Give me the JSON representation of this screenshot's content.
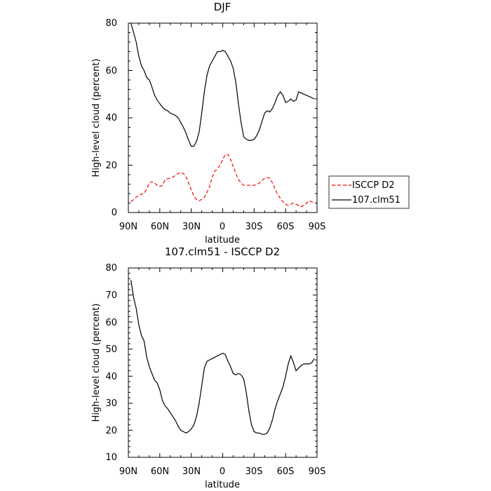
{
  "chart_data": [
    {
      "type": "line",
      "title": "DJF",
      "xlabel": "latitude",
      "ylabel": "High-level cloud (percent)",
      "xlim": [
        90,
        -90
      ],
      "ylim": [
        0,
        80
      ],
      "x_ticks": [
        90,
        60,
        30,
        0,
        -30,
        -60,
        -90
      ],
      "x_tick_labels": [
        "90N",
        "60N",
        "30N",
        "0",
        "30S",
        "60S",
        "90S"
      ],
      "y_ticks": [
        0,
        20,
        40,
        60,
        80
      ],
      "y_tick_labels": [
        "0",
        "20",
        "40",
        "60",
        "80"
      ],
      "legend_position": "right",
      "series": [
        {
          "name": "ISCCP D2",
          "color": "#ff0000",
          "style": "dashed",
          "x": [
            87.5,
            85,
            82.5,
            80,
            77.5,
            75,
            72.5,
            70,
            67.5,
            65,
            62.5,
            60,
            57.5,
            55,
            52.5,
            50,
            47.5,
            45,
            42.5,
            40,
            37.5,
            35,
            32.5,
            30,
            27.5,
            25,
            22.5,
            20,
            17.5,
            15,
            12.5,
            10,
            7.5,
            5,
            2.5,
            0,
            -2.5,
            -5,
            -7.5,
            -10,
            -12.5,
            -15,
            -17.5,
            -20,
            -22.5,
            -25,
            -27.5,
            -30,
            -32.5,
            -35,
            -37.5,
            -40,
            -42.5,
            -45,
            -47.5,
            -50,
            -52.5,
            -55,
            -57.5,
            -60,
            -62.5,
            -65,
            -67.5,
            -70,
            -72.5,
            -75,
            -77.5,
            -80,
            -82.5,
            -85,
            -87.5
          ],
          "y": [
            4.6,
            5.5,
            6.5,
            7.2,
            7.8,
            8.0,
            10.0,
            12.5,
            13.0,
            12.5,
            11.5,
            11.0,
            11.5,
            13.8,
            14.3,
            14.5,
            15.0,
            15.8,
            16.5,
            16.9,
            16.5,
            15.0,
            12.5,
            9.5,
            7.0,
            5.5,
            5.0,
            5.5,
            6.5,
            8.5,
            11.0,
            15.0,
            17.5,
            18.5,
            20.0,
            22.5,
            24.5,
            24.5,
            22.5,
            19.5,
            16.5,
            14.0,
            12.5,
            11.5,
            11.5,
            11.5,
            11.5,
            11.5,
            11.8,
            12.5,
            13.5,
            14.5,
            14.8,
            14.5,
            12.5,
            10.0,
            7.5,
            6.0,
            4.5,
            3.5,
            3.0,
            3.5,
            4.0,
            3.5,
            3.0,
            2.5,
            3.0,
            4.0,
            5.0,
            4.5,
            4.0
          ]
        },
        {
          "name": "107.clm51",
          "color": "#000000",
          "style": "solid",
          "x": [
            87.5,
            85,
            82.5,
            80,
            77.5,
            75,
            72.5,
            70,
            67.5,
            65,
            62.5,
            60,
            57.5,
            55,
            52.5,
            50,
            47.5,
            45,
            42.5,
            40,
            37.5,
            35,
            32.5,
            30,
            27.5,
            25,
            22.5,
            20,
            17.5,
            15,
            12.5,
            10,
            7.5,
            5,
            2.5,
            0,
            -2.5,
            -5,
            -7.5,
            -10,
            -12.5,
            -15,
            -17.5,
            -20,
            -22.5,
            -25,
            -27.5,
            -30,
            -32.5,
            -35,
            -37.5,
            -40,
            -42.5,
            -45,
            -47.5,
            -50,
            -52.5,
            -55,
            -57.5,
            -60,
            -62.5,
            -65,
            -67.5,
            -70,
            -72.5,
            -75,
            -77.5,
            -80,
            -82.5,
            -85,
            -87.5
          ],
          "y": [
            80.0,
            76.0,
            72.0,
            66.0,
            62.0,
            60.0,
            57.0,
            56.0,
            53.0,
            49.5,
            47.5,
            46.0,
            44.5,
            43.5,
            43.0,
            42.0,
            41.5,
            41.0,
            40.0,
            38.0,
            36.0,
            33.5,
            30.5,
            28.0,
            28.0,
            30.0,
            34.0,
            42.0,
            51.0,
            58.0,
            62.0,
            64.0,
            66.0,
            68.0,
            68.0,
            68.5,
            68.0,
            66.0,
            64.0,
            61.0,
            55.0,
            46.0,
            38.0,
            32.0,
            31.0,
            30.5,
            30.5,
            31.0,
            32.5,
            35.0,
            38.5,
            42.0,
            43.0,
            42.5,
            44.0,
            46.5,
            49.5,
            51.0,
            49.5,
            46.5,
            47.0,
            48.0,
            47.0,
            47.5,
            51.0,
            50.5,
            50.0,
            49.5,
            49.0,
            48.5,
            48.0
          ]
        }
      ]
    },
    {
      "type": "line",
      "title": "107.clm51 - ISCCP D2",
      "xlabel": "latitude",
      "ylabel": "High-level cloud (percent)",
      "xlim": [
        90,
        -90
      ],
      "ylim": [
        10,
        80
      ],
      "x_ticks": [
        90,
        60,
        30,
        0,
        -30,
        -60,
        -90
      ],
      "x_tick_labels": [
        "90N",
        "60N",
        "30N",
        "0",
        "30S",
        "60S",
        "90S"
      ],
      "y_ticks": [
        10,
        20,
        30,
        40,
        50,
        60,
        70,
        80
      ],
      "y_tick_labels": [
        "10",
        "20",
        "30",
        "40",
        "50",
        "60",
        "70",
        "80"
      ],
      "series": [
        {
          "color": "#000000",
          "style": "solid",
          "x": [
            87.5,
            85,
            82.5,
            80,
            77.5,
            75,
            72.5,
            70,
            67.5,
            65,
            62.5,
            60,
            57.5,
            55,
            52.5,
            50,
            47.5,
            45,
            42.5,
            40,
            37.5,
            35,
            32.5,
            30,
            27.5,
            25,
            22.5,
            20,
            17.5,
            15,
            12.5,
            10,
            7.5,
            5,
            2.5,
            0,
            -2.5,
            -5,
            -7.5,
            -10,
            -12.5,
            -15,
            -17.5,
            -20,
            -22.5,
            -25,
            -27.5,
            -30,
            -32.5,
            -35,
            -37.5,
            -40,
            -42.5,
            -45,
            -47.5,
            -50,
            -52.5,
            -55,
            -57.5,
            -60,
            -62.5,
            -65,
            -67.5,
            -70,
            -72.5,
            -75,
            -77.5,
            -80,
            -82.5,
            -85,
            -87.5
          ],
          "y": [
            75.5,
            69.0,
            65.0,
            59.0,
            55.0,
            53.0,
            47.0,
            43.5,
            41.0,
            38.5,
            37.5,
            35.0,
            31.0,
            29.0,
            28.0,
            26.5,
            25.0,
            23.5,
            21.5,
            20.0,
            19.5,
            19.0,
            19.5,
            20.5,
            22.0,
            25.0,
            30.0,
            36.5,
            43.0,
            45.5,
            46.0,
            46.5,
            47.0,
            47.5,
            48.0,
            48.5,
            48.0,
            45.5,
            43.5,
            41.0,
            40.5,
            41.0,
            40.5,
            39.0,
            34.0,
            27.0,
            22.0,
            19.5,
            19.0,
            19.0,
            18.5,
            18.5,
            19.0,
            21.0,
            24.0,
            28.0,
            31.0,
            33.5,
            36.0,
            40.0,
            44.5,
            47.5,
            45.0,
            42.0,
            43.0,
            44.0,
            44.5,
            44.5,
            44.5,
            45.0,
            46.5
          ]
        }
      ]
    }
  ]
}
